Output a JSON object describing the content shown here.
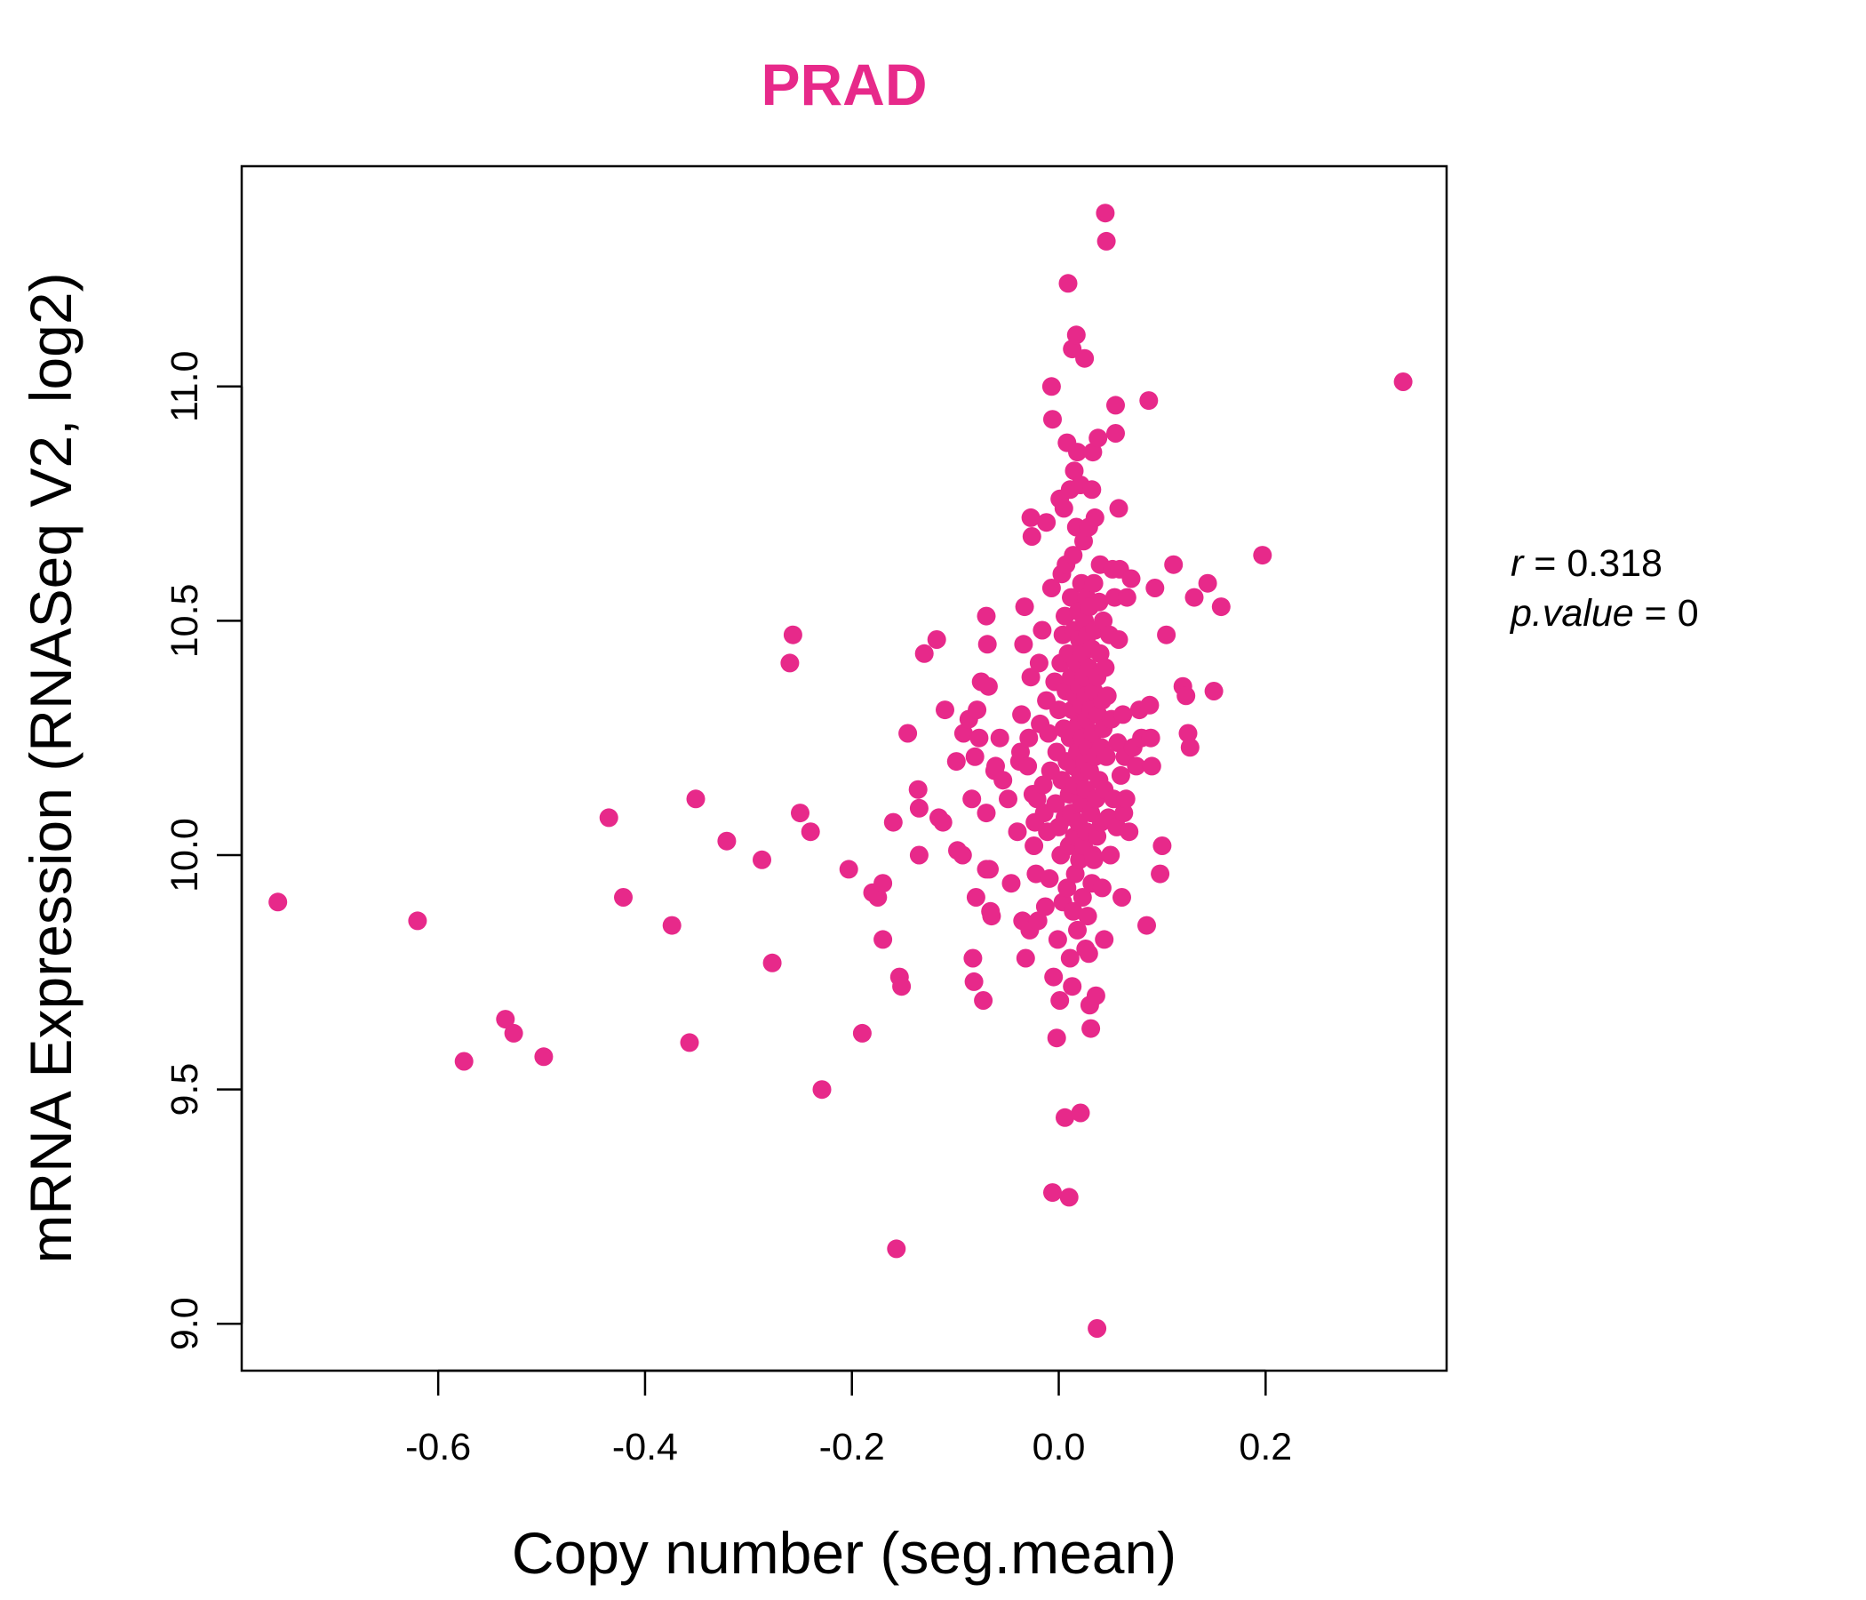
{
  "colors": {
    "accent": "#E7298A",
    "axis": "#000000"
  },
  "chart_data": {
    "type": "scatter",
    "title": "PRAD",
    "xlabel": "Copy number (seg.mean)",
    "ylabel": "mRNA Expression (RNASeq V2, log2)",
    "xlim": [
      -0.79,
      0.375
    ],
    "ylim": [
      8.9,
      11.47
    ],
    "x_ticks": [
      -0.6,
      -0.4,
      -0.2,
      0.0,
      0.2
    ],
    "x_tick_labels": [
      "-0.6",
      "-0.4",
      "-0.2",
      "0.0",
      "0.2"
    ],
    "y_ticks": [
      9.0,
      9.5,
      10.0,
      10.5,
      11.0
    ],
    "y_tick_labels": [
      "9.0",
      "9.5",
      "10.0",
      "10.5",
      "11.0"
    ],
    "grid": false,
    "stats": {
      "r_label": "r",
      "r_value": "0.318",
      "p_label": "p.value",
      "p_value": "0"
    },
    "points": [
      [
        -0.755,
        9.9
      ],
      [
        -0.62,
        9.86
      ],
      [
        -0.575,
        9.56
      ],
      [
        -0.535,
        9.65
      ],
      [
        -0.527,
        9.62
      ],
      [
        -0.498,
        9.57
      ],
      [
        -0.435,
        10.08
      ],
      [
        -0.421,
        9.91
      ],
      [
        -0.374,
        9.85
      ],
      [
        -0.357,
        9.6
      ],
      [
        -0.351,
        10.12
      ],
      [
        -0.321,
        10.03
      ],
      [
        -0.287,
        9.99
      ],
      [
        -0.277,
        9.77
      ],
      [
        -0.26,
        10.41
      ],
      [
        -0.257,
        10.47
      ],
      [
        -0.25,
        10.09
      ],
      [
        -0.24,
        10.05
      ],
      [
        -0.229,
        9.5
      ],
      [
        -0.203,
        9.97
      ],
      [
        -0.19,
        9.62
      ],
      [
        -0.18,
        9.92
      ],
      [
        -0.175,
        9.91
      ],
      [
        -0.17,
        9.94
      ],
      [
        -0.17,
        9.82
      ],
      [
        -0.16,
        10.07
      ],
      [
        -0.157,
        9.16
      ],
      [
        -0.154,
        9.74
      ],
      [
        -0.152,
        9.72
      ],
      [
        -0.146,
        10.26
      ],
      [
        -0.136,
        10.14
      ],
      [
        -0.135,
        10.1
      ],
      [
        -0.135,
        10.0
      ],
      [
        -0.13,
        10.43
      ],
      [
        -0.118,
        10.46
      ],
      [
        -0.116,
        10.08
      ],
      [
        -0.112,
        10.07
      ],
      [
        -0.11,
        10.31
      ],
      [
        -0.099,
        10.2
      ],
      [
        -0.098,
        10.01
      ],
      [
        -0.093,
        10.0
      ],
      [
        -0.092,
        10.26
      ],
      [
        -0.087,
        10.29
      ],
      [
        -0.084,
        10.12
      ],
      [
        -0.083,
        9.78
      ],
      [
        -0.082,
        9.73
      ],
      [
        -0.081,
        10.21
      ],
      [
        -0.08,
        9.91
      ],
      [
        -0.079,
        10.31
      ],
      [
        -0.077,
        10.25
      ],
      [
        -0.075,
        10.37
      ],
      [
        -0.073,
        9.69
      ],
      [
        -0.07,
        10.51
      ],
      [
        -0.07,
        10.09
      ],
      [
        -0.07,
        9.97
      ],
      [
        -0.069,
        10.45
      ],
      [
        -0.068,
        10.36
      ],
      [
        -0.067,
        9.97
      ],
      [
        -0.066,
        9.88
      ],
      [
        -0.065,
        9.87
      ],
      [
        -0.062,
        10.18
      ],
      [
        -0.061,
        10.19
      ],
      [
        -0.057,
        10.25
      ],
      [
        -0.054,
        10.16
      ],
      [
        -0.049,
        10.12
      ],
      [
        -0.046,
        9.94
      ],
      [
        -0.04,
        10.05
      ],
      [
        -0.038,
        10.2
      ],
      [
        -0.037,
        10.22
      ],
      [
        -0.036,
        10.3
      ],
      [
        -0.035,
        9.86
      ],
      [
        -0.034,
        10.45
      ],
      [
        -0.033,
        10.53
      ],
      [
        -0.032,
        9.78
      ],
      [
        -0.03,
        10.19
      ],
      [
        -0.029,
        10.25
      ],
      [
        -0.028,
        9.84
      ],
      [
        -0.027,
        10.38
      ],
      [
        -0.027,
        10.72
      ],
      [
        -0.026,
        10.68
      ],
      [
        -0.025,
        10.13
      ],
      [
        -0.024,
        10.02
      ],
      [
        -0.023,
        10.07
      ],
      [
        -0.022,
        9.96
      ],
      [
        -0.021,
        10.12
      ],
      [
        -0.02,
        9.86
      ],
      [
        -0.019,
        10.41
      ],
      [
        -0.018,
        10.28
      ],
      [
        -0.016,
        10.48
      ],
      [
        -0.015,
        10.15
      ],
      [
        -0.014,
        10.09
      ],
      [
        -0.013,
        9.89
      ],
      [
        -0.012,
        10.71
      ],
      [
        -0.012,
        10.33
      ],
      [
        -0.011,
        10.05
      ],
      [
        -0.01,
        10.26
      ],
      [
        -0.009,
        9.95
      ],
      [
        -0.008,
        10.18
      ],
      [
        -0.007,
        10.57
      ],
      [
        -0.007,
        11.0
      ],
      [
        -0.006,
        10.93
      ],
      [
        -0.006,
        9.28
      ],
      [
        -0.005,
        9.74
      ],
      [
        -0.004,
        10.37
      ],
      [
        -0.003,
        10.11
      ],
      [
        -0.002,
        10.22
      ],
      [
        -0.002,
        9.61
      ],
      [
        -0.001,
        9.82
      ],
      [
        0.0,
        10.06
      ],
      [
        0.0,
        10.31
      ],
      [
        0.001,
        10.76
      ],
      [
        0.001,
        9.69
      ],
      [
        0.002,
        10.0
      ],
      [
        0.002,
        10.41
      ],
      [
        0.003,
        10.6
      ],
      [
        0.003,
        10.16
      ],
      [
        0.004,
        10.47
      ],
      [
        0.004,
        9.9
      ],
      [
        0.005,
        10.27
      ],
      [
        0.005,
        10.74
      ],
      [
        0.006,
        10.51
      ],
      [
        0.006,
        10.08
      ],
      [
        0.006,
        9.44
      ],
      [
        0.007,
        10.35
      ],
      [
        0.007,
        10.62
      ],
      [
        0.008,
        10.2
      ],
      [
        0.008,
        10.88
      ],
      [
        0.008,
        9.93
      ],
      [
        0.009,
        11.22
      ],
      [
        0.009,
        10.43
      ],
      [
        0.01,
        10.13
      ],
      [
        0.01,
        10.02
      ],
      [
        0.01,
        9.27
      ],
      [
        0.011,
        10.78
      ],
      [
        0.011,
        10.25
      ],
      [
        0.011,
        9.78
      ],
      [
        0.012,
        10.55
      ],
      [
        0.012,
        10.38
      ],
      [
        0.012,
        10.09
      ],
      [
        0.013,
        11.08
      ],
      [
        0.013,
        10.31
      ],
      [
        0.013,
        9.72
      ],
      [
        0.014,
        10.64
      ],
      [
        0.014,
        10.19
      ],
      [
        0.014,
        9.88
      ],
      [
        0.015,
        10.48
      ],
      [
        0.015,
        10.04
      ],
      [
        0.015,
        10.82
      ],
      [
        0.016,
        10.34
      ],
      [
        0.016,
        10.15
      ],
      [
        0.016,
        9.96
      ],
      [
        0.017,
        11.11
      ],
      [
        0.017,
        10.7
      ],
      [
        0.017,
        10.41
      ],
      [
        0.018,
        10.22
      ],
      [
        0.018,
        10.86
      ],
      [
        0.018,
        9.84
      ],
      [
        0.019,
        10.52
      ],
      [
        0.019,
        10.28
      ],
      [
        0.019,
        10.07
      ],
      [
        0.02,
        10.46
      ],
      [
        0.02,
        10.36
      ],
      [
        0.02,
        9.99
      ],
      [
        0.021,
        10.79
      ],
      [
        0.021,
        10.17
      ],
      [
        0.021,
        9.45
      ],
      [
        0.022,
        10.58
      ],
      [
        0.022,
        10.32
      ],
      [
        0.022,
        10.11
      ],
      [
        0.023,
        10.43
      ],
      [
        0.023,
        10.25
      ],
      [
        0.023,
        9.91
      ],
      [
        0.024,
        10.67
      ],
      [
        0.024,
        10.38
      ],
      [
        0.024,
        10.02
      ],
      [
        0.025,
        10.5
      ],
      [
        0.025,
        10.2
      ],
      [
        0.025,
        11.06
      ],
      [
        0.026,
        10.34
      ],
      [
        0.026,
        10.14
      ],
      [
        0.026,
        9.8
      ],
      [
        0.027,
        10.55
      ],
      [
        0.027,
        10.29
      ],
      [
        0.027,
        10.05
      ],
      [
        0.028,
        10.47
      ],
      [
        0.028,
        10.23
      ],
      [
        0.028,
        9.87
      ],
      [
        0.029,
        10.7
      ],
      [
        0.029,
        10.4
      ],
      [
        0.029,
        9.79
      ],
      [
        0.03,
        10.53
      ],
      [
        0.03,
        10.18
      ],
      [
        0.03,
        9.68
      ],
      [
        0.031,
        10.31
      ],
      [
        0.031,
        10.09
      ],
      [
        0.031,
        9.63
      ],
      [
        0.032,
        10.78
      ],
      [
        0.032,
        10.44
      ],
      [
        0.032,
        9.94
      ],
      [
        0.033,
        10.26
      ],
      [
        0.033,
        10.0
      ],
      [
        0.033,
        10.86
      ],
      [
        0.034,
        10.58
      ],
      [
        0.034,
        10.35
      ],
      [
        0.034,
        9.99
      ],
      [
        0.035,
        10.72
      ],
      [
        0.035,
        10.48
      ],
      [
        0.035,
        10.21
      ],
      [
        0.036,
        10.12
      ],
      [
        0.036,
        9.7
      ],
      [
        0.037,
        10.38
      ],
      [
        0.037,
        10.04
      ],
      [
        0.037,
        8.99
      ],
      [
        0.038,
        10.89
      ],
      [
        0.038,
        10.3
      ],
      [
        0.039,
        10.54
      ],
      [
        0.039,
        10.16
      ],
      [
        0.04,
        10.62
      ],
      [
        0.04,
        10.43
      ],
      [
        0.041,
        10.23
      ],
      [
        0.041,
        10.07
      ],
      [
        0.042,
        10.33
      ],
      [
        0.042,
        9.93
      ],
      [
        0.043,
        10.5
      ],
      [
        0.043,
        10.27
      ],
      [
        0.044,
        10.14
      ],
      [
        0.044,
        9.82
      ],
      [
        0.045,
        11.37
      ],
      [
        0.045,
        10.4
      ],
      [
        0.046,
        11.31
      ],
      [
        0.046,
        10.21
      ],
      [
        0.047,
        10.34
      ],
      [
        0.048,
        10.08
      ],
      [
        0.049,
        10.47
      ],
      [
        0.05,
        10.0
      ],
      [
        0.051,
        10.29
      ],
      [
        0.052,
        10.61
      ],
      [
        0.053,
        10.12
      ],
      [
        0.054,
        10.55
      ],
      [
        0.055,
        10.96
      ],
      [
        0.055,
        10.9
      ],
      [
        0.056,
        10.06
      ],
      [
        0.057,
        10.24
      ],
      [
        0.058,
        10.74
      ],
      [
        0.058,
        10.46
      ],
      [
        0.059,
        10.61
      ],
      [
        0.06,
        10.17
      ],
      [
        0.061,
        9.91
      ],
      [
        0.062,
        10.3
      ],
      [
        0.063,
        10.09
      ],
      [
        0.064,
        10.21
      ],
      [
        0.065,
        10.12
      ],
      [
        0.066,
        10.55
      ],
      [
        0.068,
        10.05
      ],
      [
        0.07,
        10.59
      ],
      [
        0.072,
        10.23
      ],
      [
        0.075,
        10.19
      ],
      [
        0.078,
        10.31
      ],
      [
        0.08,
        10.25
      ],
      [
        0.085,
        9.85
      ],
      [
        0.087,
        10.97
      ],
      [
        0.088,
        10.32
      ],
      [
        0.089,
        10.25
      ],
      [
        0.09,
        10.19
      ],
      [
        0.093,
        10.57
      ],
      [
        0.098,
        9.96
      ],
      [
        0.1,
        10.02
      ],
      [
        0.104,
        10.47
      ],
      [
        0.111,
        10.62
      ],
      [
        0.12,
        10.36
      ],
      [
        0.123,
        10.34
      ],
      [
        0.125,
        10.26
      ],
      [
        0.127,
        10.23
      ],
      [
        0.131,
        10.55
      ],
      [
        0.144,
        10.58
      ],
      [
        0.15,
        10.35
      ],
      [
        0.157,
        10.53
      ],
      [
        0.197,
        10.64
      ],
      [
        0.333,
        11.01
      ]
    ]
  }
}
